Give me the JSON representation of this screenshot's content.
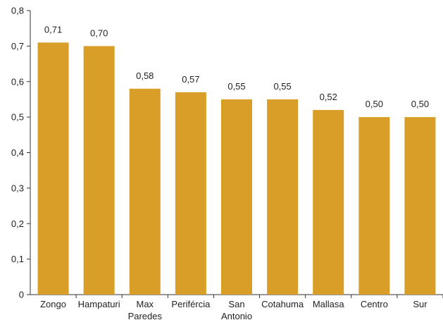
{
  "chart_data": {
    "type": "bar",
    "categories": [
      [
        "Zongo"
      ],
      [
        "Hampaturi"
      ],
      [
        "Max",
        "Paredes"
      ],
      [
        "Perifércia"
      ],
      [
        "San",
        "Antonio"
      ],
      [
        "Cotahuma"
      ],
      [
        "Mallasa"
      ],
      [
        "Centro"
      ],
      [
        "Sur"
      ]
    ],
    "values": [
      0.71,
      0.7,
      0.58,
      0.57,
      0.55,
      0.55,
      0.52,
      0.5,
      0.5
    ],
    "data_labels": [
      "0,71",
      "0,70",
      "0,58",
      "0,57",
      "0,55",
      "0,55",
      "0,52",
      "0,50",
      "0,50"
    ],
    "y_ticks": [
      0,
      0.1,
      0.2,
      0.3,
      0.4,
      0.5,
      0.6,
      0.7,
      0.8
    ],
    "y_tick_labels": [
      "0",
      "0,1",
      "0,2",
      "0,3",
      "0,4",
      "0,5",
      "0,6",
      "0,7",
      "0,8"
    ],
    "ylim": [
      0,
      0.8
    ],
    "title": "",
    "xlabel": "",
    "ylabel": "",
    "grid": false,
    "bar_color": "#D99E27",
    "axis_color": "#333333"
  }
}
